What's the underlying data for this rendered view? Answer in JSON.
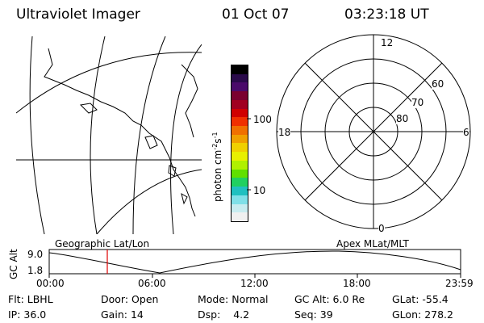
{
  "header": {
    "instrument": "Ultraviolet Imager",
    "date": "01 Oct 07",
    "time": "03:23:18 UT"
  },
  "colorbar": {
    "unit_label": "photon cm",
    "unit_exp1": "-2",
    "unit_s": "s",
    "unit_exp2": "-1",
    "ticks": [
      "100",
      "10"
    ],
    "colors": [
      "#000000",
      "#2a0a4a",
      "#4a0a6a",
      "#7a0030",
      "#a00020",
      "#d00000",
      "#f03000",
      "#f07000",
      "#f0a000",
      "#f0d000",
      "#e8f000",
      "#b0f000",
      "#60e000",
      "#20d060",
      "#20c0c0",
      "#80e0e8",
      "#c8ecf0",
      "#f0f0f0"
    ]
  },
  "polar_grid": {
    "mlt_labels": [
      "12",
      "18",
      "6",
      "0"
    ],
    "lat_labels": [
      "60",
      "70",
      "80"
    ]
  },
  "timeline": {
    "left_label": "Geographic Lat/Lon",
    "right_label": "Apex MLat/MLT",
    "ylabel": "GC Alt",
    "y_top": "9.0",
    "y_bottom": "1.8",
    "x_ticks": [
      "00:00",
      "06:00",
      "12:00",
      "18:00",
      "23:59"
    ],
    "current_marker_color": "#e00000"
  },
  "status": {
    "flt_label": "Flt:",
    "flt_value": "LBHL",
    "ip_label": "IP:",
    "ip_value": "36.0",
    "door_label": "Door:",
    "door_value": "Open",
    "gain_label": "Gain:",
    "gain_value": "14",
    "mode_label": "Mode:",
    "mode_value": "Normal",
    "dsp_label": "Dsp:",
    "dsp_value": "4.2",
    "gcalt_label": "GC Alt:",
    "gcalt_value": "6.0 Re",
    "seq_label": "Seq:",
    "seq_value": "39",
    "glat_label": "GLat:",
    "glat_value": "-55.4",
    "glon_label": "GLon:",
    "glon_value": "278.2"
  }
}
